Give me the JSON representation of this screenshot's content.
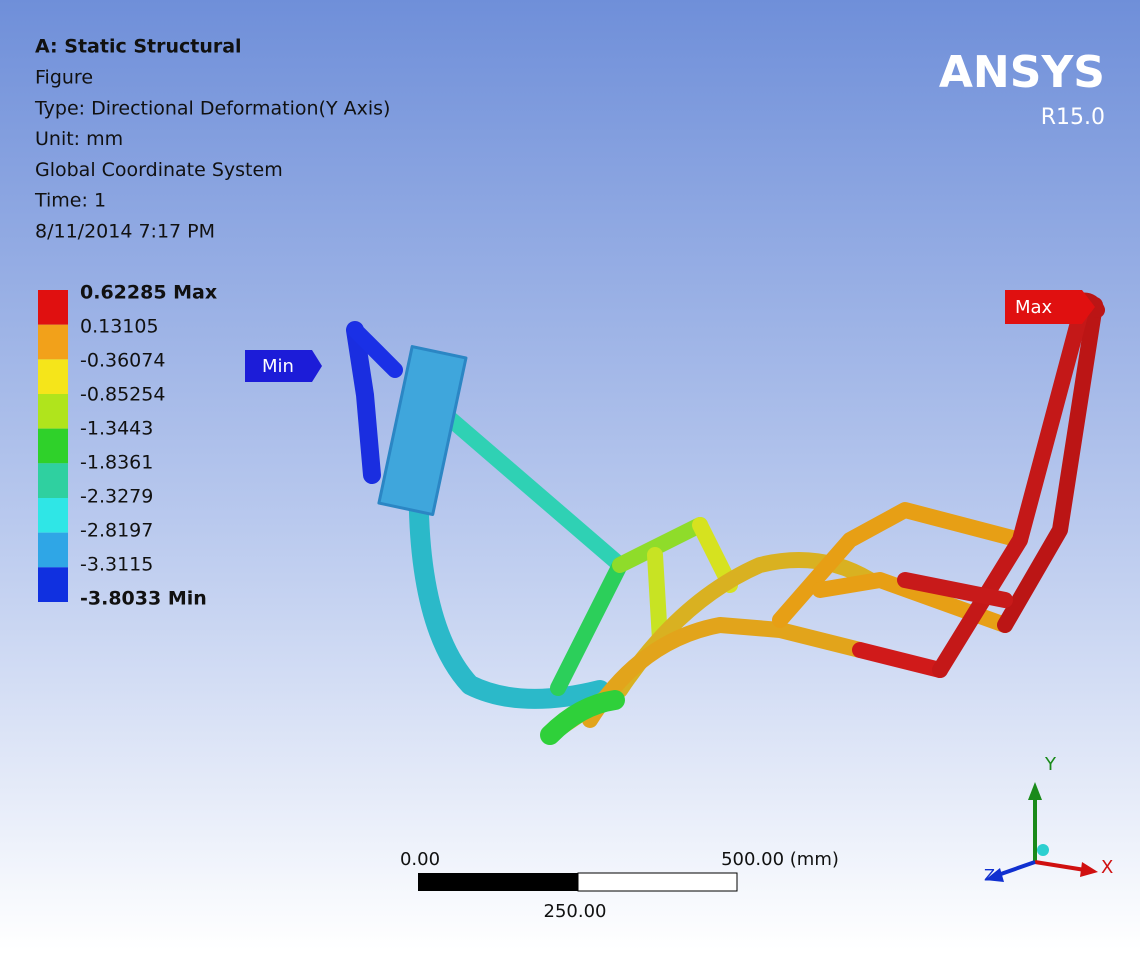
{
  "header": {
    "title": "A: Static Structural",
    "lines": [
      "Figure",
      "Type: Directional Deformation(Y Axis)",
      "Unit: mm",
      "Global Coordinate System",
      "Time: 1",
      "8/11/2014 7:17 PM"
    ]
  },
  "logo": {
    "name": "ANSYS",
    "version": "R15.0"
  },
  "legend": {
    "labels": [
      "0.62285 Max",
      "0.13105",
      "-0.36074",
      "-0.85254",
      "-1.3443",
      "-1.8361",
      "-2.3279",
      "-2.8197",
      "-3.3115",
      "-3.8033 Min"
    ]
  },
  "probes": {
    "min": "Min",
    "max": "Max"
  },
  "scale_bar": {
    "start": "0.00",
    "end": "500.00 (mm)",
    "middle": "250.00"
  },
  "triad": {
    "y": "Y",
    "x": "X",
    "z": "Z"
  }
}
